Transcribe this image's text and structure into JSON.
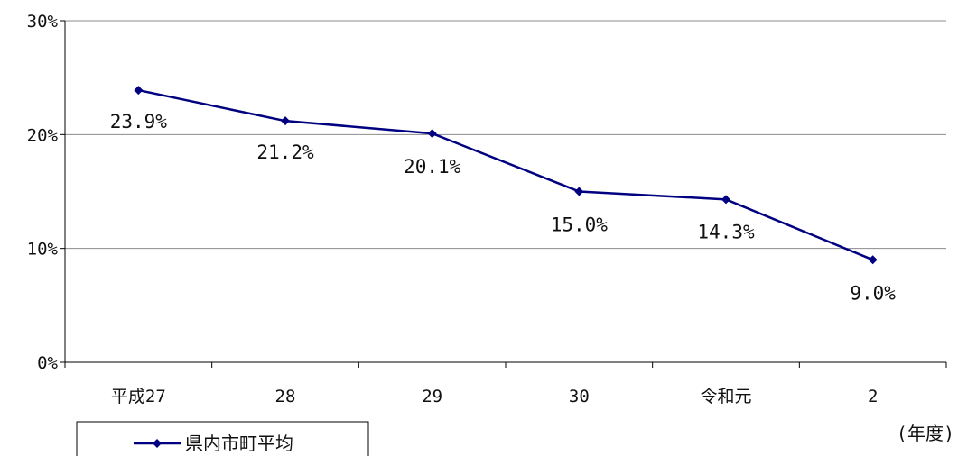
{
  "chart_data": {
    "type": "line",
    "categories": [
      "平成27",
      "28",
      "29",
      "30",
      "令和元",
      "2"
    ],
    "series": [
      {
        "name": "県内市町平均",
        "values": [
          23.9,
          21.2,
          20.1,
          15.0,
          14.3,
          9.0
        ],
        "labels": [
          "23.9%",
          "21.2%",
          "20.1%",
          "15.0%",
          "14.3%",
          "9.0%"
        ],
        "color": "#000080"
      }
    ],
    "yticks": [
      "0%",
      "10%",
      "20%",
      "30%"
    ],
    "ylim": [
      0,
      30
    ],
    "x_unit": "(年度)",
    "grid": true,
    "legend_position": "bottom-left"
  }
}
